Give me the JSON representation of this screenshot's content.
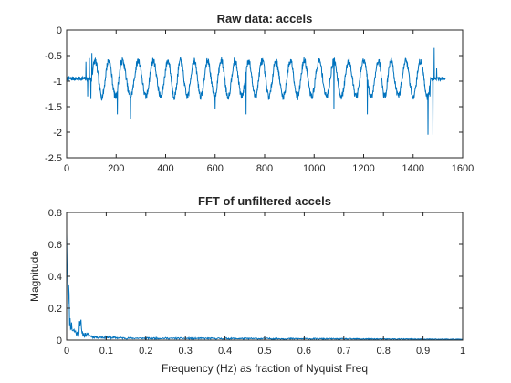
{
  "figure": {
    "background": "#ffffff",
    "line_color": "#0072bd",
    "axes_color": "#262626"
  },
  "chart_data": [
    {
      "type": "line",
      "title": "Raw data: accels",
      "xlabel": "",
      "ylabel": "",
      "xlim": [
        0,
        1600
      ],
      "ylim": [
        -2.5,
        0
      ],
      "xticks": [
        0,
        200,
        400,
        600,
        800,
        1000,
        1200,
        1400,
        1600
      ],
      "yticks": [
        -2.5,
        -2,
        -1.5,
        -1,
        -0.5,
        0
      ],
      "ytick_labels": [
        "-2.5",
        "-2",
        "-1.5",
        "-1",
        "-0.5",
        "0"
      ],
      "grid": false,
      "signal": {
        "x_range": [
          0,
          1530
        ],
        "baseline": -0.95,
        "oscillation_start": 100,
        "oscillation_end": 1470,
        "cycle_peaks": [
          115,
          170,
          225,
          290,
          350,
          410,
          460,
          515,
          570,
          625,
          680,
          735,
          790,
          845,
          905,
          960,
          1020,
          1080,
          1140,
          1200,
          1260,
          1310,
          1370,
          1430
        ],
        "peak_level": -0.6,
        "trough_level": -1.3,
        "spikes": [
          {
            "x": 78,
            "y": -0.62
          },
          {
            "x": 85,
            "y": -1.3
          },
          {
            "x": 92,
            "y": -0.55
          },
          {
            "x": 98,
            "y": -1.35
          },
          {
            "x": 102,
            "y": -0.45
          },
          {
            "x": 205,
            "y": -1.65
          },
          {
            "x": 258,
            "y": -1.75
          },
          {
            "x": 600,
            "y": -1.55
          },
          {
            "x": 725,
            "y": -1.65
          },
          {
            "x": 1080,
            "y": -1.55
          },
          {
            "x": 1215,
            "y": -1.65
          },
          {
            "x": 1460,
            "y": -2.05
          },
          {
            "x": 1468,
            "y": -1.3
          },
          {
            "x": 1480,
            "y": -2.05
          },
          {
            "x": 1485,
            "y": -0.35
          },
          {
            "x": 1495,
            "y": -0.75
          }
        ]
      }
    },
    {
      "type": "line",
      "title": "FFT of unfiltered accels",
      "xlabel": "Frequency (Hz) as fraction of Nyquist Freq",
      "ylabel": "Magnitude",
      "xlim": [
        0,
        1
      ],
      "ylim": [
        0,
        0.8
      ],
      "xticks": [
        0,
        0.1,
        0.2,
        0.3,
        0.4,
        0.5,
        0.6,
        0.7,
        0.8,
        0.9,
        1
      ],
      "xtick_labels": [
        "0",
        "0.1",
        "0.2",
        "0.3",
        "0.4",
        "0.5",
        "0.6",
        "0.7",
        "0.8",
        "0.9",
        "1"
      ],
      "yticks": [
        0,
        0.2,
        0.4,
        0.6,
        0.8
      ],
      "ytick_labels": [
        "0",
        "0.2",
        "0.4",
        "0.6",
        "0.8"
      ],
      "grid": false,
      "signal": {
        "dc_peak": 0.67,
        "features": [
          {
            "x": 0.0,
            "y": 0.67
          },
          {
            "x": 0.004,
            "y": 0.35
          },
          {
            "x": 0.008,
            "y": 0.12
          },
          {
            "x": 0.015,
            "y": 0.07
          },
          {
            "x": 0.03,
            "y": 0.03
          },
          {
            "x": 0.034,
            "y": 0.16
          },
          {
            "x": 0.038,
            "y": 0.04
          },
          {
            "x": 0.07,
            "y": 0.02
          },
          {
            "x": 0.15,
            "y": 0.012
          },
          {
            "x": 1.0,
            "y": 0.005
          }
        ]
      }
    }
  ]
}
